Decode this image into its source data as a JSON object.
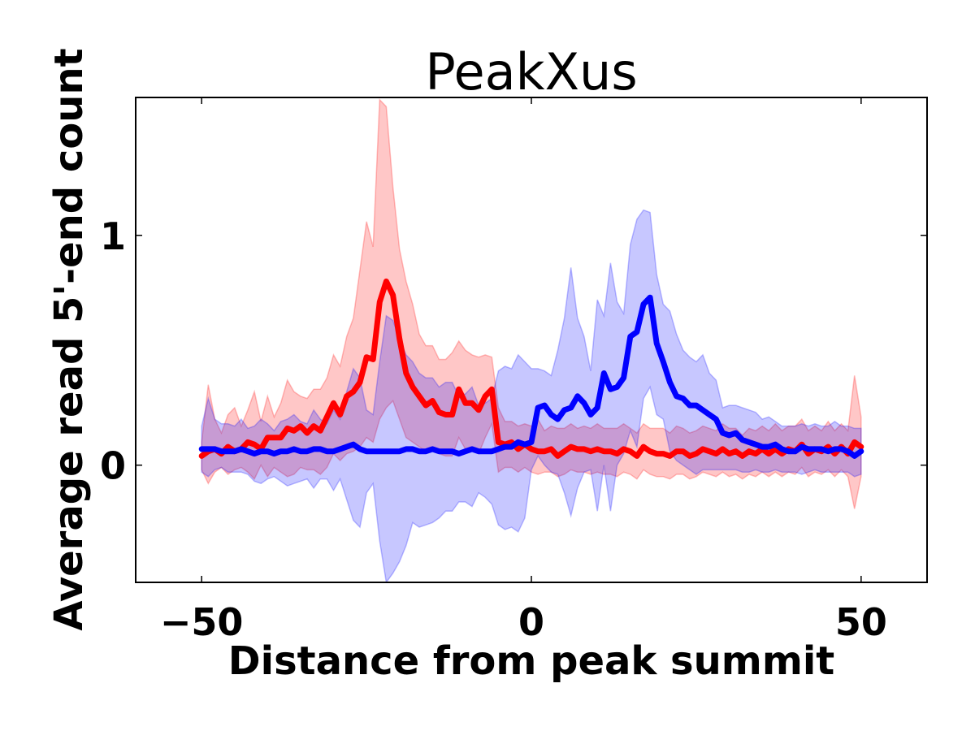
{
  "chart_data": {
    "type": "line",
    "title": "PeakXus",
    "xlabel": "Distance from peak summit",
    "ylabel": "Average read 5'-end count",
    "xlim": [
      -60,
      60
    ],
    "ylim": [
      -0.51,
      1.6
    ],
    "x_ticks": [
      -50,
      0,
      50
    ],
    "x_tick_labels": [
      "−50",
      "0",
      "50"
    ],
    "y_ticks": [
      0,
      1
    ],
    "y_tick_labels": [
      "0",
      "1"
    ],
    "grid": false,
    "legend": "none",
    "x": [
      -50,
      -49,
      -48,
      -47,
      -46,
      -45,
      -44,
      -43,
      -42,
      -41,
      -40,
      -39,
      -38,
      -37,
      -36,
      -35,
      -34,
      -33,
      -32,
      -31,
      -30,
      -29,
      -28,
      -27,
      -26,
      -25,
      -24,
      -23,
      -22,
      -21,
      -20,
      -19,
      -18,
      -17,
      -16,
      -15,
      -14,
      -13,
      -12,
      -11,
      -10,
      -9,
      -8,
      -7,
      -6,
      -5,
      -4,
      -3,
      -2,
      -1,
      0,
      1,
      2,
      3,
      4,
      5,
      6,
      7,
      8,
      9,
      10,
      11,
      12,
      13,
      14,
      15,
      16,
      17,
      18,
      19,
      20,
      21,
      22,
      23,
      24,
      25,
      26,
      27,
      28,
      29,
      30,
      31,
      32,
      33,
      34,
      35,
      36,
      37,
      38,
      39,
      40,
      41,
      42,
      43,
      44,
      45,
      46,
      47,
      48,
      49,
      50
    ],
    "series": [
      {
        "color": "#ff0000",
        "values": [
          0.04,
          0.06,
          0.07,
          0.05,
          0.08,
          0.06,
          0.07,
          0.1,
          0.09,
          0.07,
          0.12,
          0.12,
          0.12,
          0.16,
          0.15,
          0.17,
          0.14,
          0.17,
          0.15,
          0.21,
          0.27,
          0.22,
          0.3,
          0.32,
          0.36,
          0.47,
          0.46,
          0.71,
          0.8,
          0.74,
          0.55,
          0.4,
          0.34,
          0.3,
          0.26,
          0.28,
          0.23,
          0.22,
          0.22,
          0.33,
          0.27,
          0.27,
          0.24,
          0.3,
          0.33,
          0.1,
          0.09,
          0.1,
          0.07,
          0.09,
          0.07,
          0.06,
          0.06,
          0.07,
          0.04,
          0.06,
          0.08,
          0.07,
          0.07,
          0.06,
          0.07,
          0.06,
          0.06,
          0.05,
          0.07,
          0.06,
          0.04,
          0.08,
          0.06,
          0.05,
          0.05,
          0.04,
          0.06,
          0.06,
          0.04,
          0.05,
          0.07,
          0.06,
          0.05,
          0.07,
          0.05,
          0.06,
          0.04,
          0.06,
          0.05,
          0.07,
          0.05,
          0.07,
          0.05,
          0.07,
          0.06,
          0.09,
          0.05,
          0.07,
          0.06,
          0.08,
          0.05,
          0.08,
          0.05,
          0.1,
          0.08
        ],
        "band_upper": [
          0.1,
          0.35,
          0.2,
          0.14,
          0.22,
          0.25,
          0.17,
          0.24,
          0.32,
          0.19,
          0.3,
          0.21,
          0.27,
          0.37,
          0.32,
          0.3,
          0.29,
          0.33,
          0.33,
          0.38,
          0.48,
          0.43,
          0.56,
          0.64,
          0.85,
          1.06,
          0.95,
          1.59,
          1.56,
          1.21,
          0.94,
          0.8,
          0.7,
          0.57,
          0.52,
          0.52,
          0.46,
          0.46,
          0.49,
          0.54,
          0.5,
          0.48,
          0.47,
          0.48,
          0.47,
          0.25,
          0.19,
          0.19,
          0.17,
          0.18,
          0.17,
          0.2,
          0.15,
          0.17,
          0.16,
          0.16,
          0.18,
          0.16,
          0.17,
          0.16,
          0.18,
          0.16,
          0.16,
          0.16,
          0.18,
          0.16,
          0.14,
          0.18,
          0.16,
          0.16,
          0.16,
          0.14,
          0.17,
          0.16,
          0.14,
          0.15,
          0.17,
          0.16,
          0.15,
          0.18,
          0.16,
          0.16,
          0.13,
          0.16,
          0.15,
          0.17,
          0.15,
          0.18,
          0.15,
          0.17,
          0.17,
          0.2,
          0.15,
          0.17,
          0.15,
          0.19,
          0.15,
          0.18,
          0.15,
          0.39,
          0.21
        ],
        "band_lower": [
          -0.02,
          -0.08,
          -0.03,
          -0.01,
          -0.04,
          -0.02,
          -0.01,
          -0.03,
          -0.06,
          0.0,
          -0.05,
          -0.01,
          -0.03,
          -0.05,
          -0.04,
          -0.01,
          -0.02,
          -0.02,
          -0.04,
          -0.01,
          0.05,
          0.02,
          0.05,
          0.06,
          0.08,
          0.12,
          0.1,
          0.2,
          0.25,
          0.28,
          0.2,
          0.12,
          0.1,
          0.08,
          0.06,
          0.08,
          0.05,
          0.04,
          0.04,
          0.12,
          0.07,
          0.08,
          0.05,
          0.12,
          0.18,
          -0.03,
          -0.01,
          -0.01,
          -0.03,
          -0.01,
          -0.03,
          -0.04,
          -0.03,
          -0.03,
          -0.05,
          -0.04,
          -0.02,
          -0.03,
          -0.03,
          -0.04,
          -0.03,
          -0.04,
          -0.04,
          -0.05,
          -0.03,
          -0.04,
          -0.06,
          -0.02,
          -0.04,
          -0.05,
          -0.05,
          -0.06,
          -0.04,
          -0.04,
          -0.06,
          -0.05,
          -0.03,
          -0.04,
          -0.05,
          -0.03,
          -0.05,
          -0.04,
          -0.06,
          -0.04,
          -0.05,
          -0.03,
          -0.05,
          -0.03,
          -0.05,
          -0.03,
          -0.04,
          -0.01,
          -0.05,
          -0.03,
          -0.04,
          -0.02,
          -0.05,
          -0.02,
          -0.05,
          -0.19,
          -0.05
        ]
      },
      {
        "color": "#0000ff",
        "values": [
          0.07,
          0.07,
          0.07,
          0.06,
          0.06,
          0.06,
          0.07,
          0.06,
          0.05,
          0.06,
          0.06,
          0.05,
          0.06,
          0.06,
          0.07,
          0.06,
          0.06,
          0.07,
          0.07,
          0.06,
          0.06,
          0.07,
          0.08,
          0.09,
          0.07,
          0.06,
          0.06,
          0.06,
          0.06,
          0.06,
          0.06,
          0.07,
          0.07,
          0.06,
          0.06,
          0.07,
          0.06,
          0.06,
          0.06,
          0.05,
          0.06,
          0.07,
          0.06,
          0.06,
          0.06,
          0.07,
          0.08,
          0.08,
          0.1,
          0.09,
          0.1,
          0.25,
          0.26,
          0.22,
          0.2,
          0.24,
          0.25,
          0.3,
          0.27,
          0.22,
          0.25,
          0.4,
          0.33,
          0.34,
          0.38,
          0.56,
          0.58,
          0.7,
          0.73,
          0.53,
          0.45,
          0.36,
          0.3,
          0.29,
          0.26,
          0.26,
          0.24,
          0.22,
          0.2,
          0.14,
          0.13,
          0.14,
          0.11,
          0.1,
          0.09,
          0.08,
          0.08,
          0.09,
          0.07,
          0.06,
          0.06,
          0.08,
          0.07,
          0.07,
          0.07,
          0.06,
          0.07,
          0.07,
          0.06,
          0.04,
          0.06
        ],
        "band_upper": [
          0.17,
          0.29,
          0.2,
          0.18,
          0.18,
          0.17,
          0.2,
          0.16,
          0.17,
          0.2,
          0.18,
          0.15,
          0.19,
          0.2,
          0.22,
          0.19,
          0.18,
          0.24,
          0.2,
          0.18,
          0.24,
          0.2,
          0.32,
          0.42,
          0.38,
          0.24,
          0.22,
          0.45,
          0.65,
          0.63,
          0.55,
          0.48,
          0.45,
          0.4,
          0.38,
          0.38,
          0.34,
          0.36,
          0.36,
          0.3,
          0.31,
          0.34,
          0.26,
          0.27,
          0.29,
          0.41,
          0.43,
          0.42,
          0.48,
          0.45,
          0.42,
          0.42,
          0.41,
          0.39,
          0.5,
          0.64,
          0.86,
          0.64,
          0.56,
          0.41,
          0.72,
          0.65,
          0.88,
          0.71,
          0.66,
          0.96,
          1.07,
          1.11,
          1.1,
          0.83,
          0.7,
          0.67,
          0.57,
          0.5,
          0.47,
          0.45,
          0.48,
          0.4,
          0.37,
          0.25,
          0.26,
          0.26,
          0.25,
          0.24,
          0.23,
          0.2,
          0.21,
          0.19,
          0.17,
          0.17,
          0.17,
          0.18,
          0.17,
          0.18,
          0.17,
          0.17,
          0.19,
          0.17,
          0.17,
          0.16,
          0.16
        ],
        "band_lower": [
          -0.03,
          -0.05,
          -0.02,
          -0.01,
          -0.03,
          -0.03,
          -0.03,
          -0.04,
          -0.07,
          -0.08,
          -0.06,
          -0.05,
          -0.07,
          -0.09,
          -0.08,
          -0.07,
          -0.06,
          -0.1,
          -0.06,
          -0.06,
          -0.11,
          -0.06,
          -0.15,
          -0.24,
          -0.27,
          -0.12,
          -0.08,
          -0.33,
          -0.51,
          -0.47,
          -0.42,
          -0.35,
          -0.25,
          -0.27,
          -0.26,
          -0.25,
          -0.23,
          -0.2,
          -0.2,
          -0.16,
          -0.16,
          -0.18,
          -0.12,
          -0.14,
          -0.17,
          -0.26,
          -0.28,
          -0.27,
          -0.29,
          -0.23,
          -0.02,
          0.04,
          0.0,
          -0.03,
          -0.04,
          -0.12,
          -0.22,
          -0.1,
          -0.03,
          -0.02,
          -0.2,
          0.0,
          -0.2,
          0.0,
          0.05,
          0.15,
          0.08,
          0.29,
          0.34,
          0.22,
          0.2,
          0.06,
          0.02,
          0.0,
          -0.02,
          -0.04,
          -0.02,
          -0.02,
          -0.02,
          -0.02,
          -0.02,
          -0.02,
          -0.03,
          -0.03,
          -0.02,
          -0.03,
          -0.03,
          -0.02,
          -0.03,
          -0.03,
          -0.03,
          -0.04,
          -0.03,
          -0.02,
          -0.03,
          -0.03,
          -0.03,
          -0.03,
          -0.03,
          -0.05,
          -0.04
        ]
      }
    ]
  }
}
